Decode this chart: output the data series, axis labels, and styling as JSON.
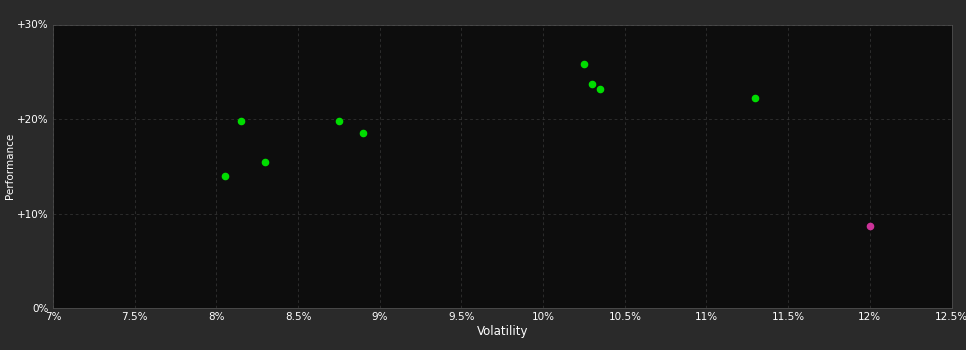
{
  "background_color": "#2a2a2a",
  "plot_bg_color": "#0d0d0d",
  "grid_color": "#555555",
  "xlabel": "Volatility",
  "ylabel": "Performance",
  "xlim": [
    0.07,
    0.125
  ],
  "ylim": [
    0.0,
    0.3
  ],
  "xticks": [
    0.07,
    0.075,
    0.08,
    0.085,
    0.09,
    0.095,
    0.1,
    0.105,
    0.11,
    0.115,
    0.12,
    0.125
  ],
  "yticks": [
    0.0,
    0.1,
    0.2,
    0.3
  ],
  "ytick_labels": [
    "0%",
    "+10%",
    "+20%",
    "+30%"
  ],
  "xtick_labels": [
    "7%",
    "7.5%",
    "8%",
    "8.5%",
    "9%",
    "9.5%",
    "10%",
    "10.5%",
    "11%",
    "11.5%",
    "12%",
    "12.5%"
  ],
  "green_points": [
    [
      0.0805,
      0.14
    ],
    [
      0.083,
      0.155
    ],
    [
      0.0815,
      0.198
    ],
    [
      0.0875,
      0.198
    ],
    [
      0.089,
      0.185
    ],
    [
      0.1025,
      0.258
    ],
    [
      0.103,
      0.237
    ],
    [
      0.1035,
      0.232
    ],
    [
      0.113,
      0.222
    ]
  ],
  "magenta_points": [
    [
      0.12,
      0.087
    ]
  ],
  "green_color": "#00dd00",
  "magenta_color": "#cc3399",
  "point_size": 20
}
